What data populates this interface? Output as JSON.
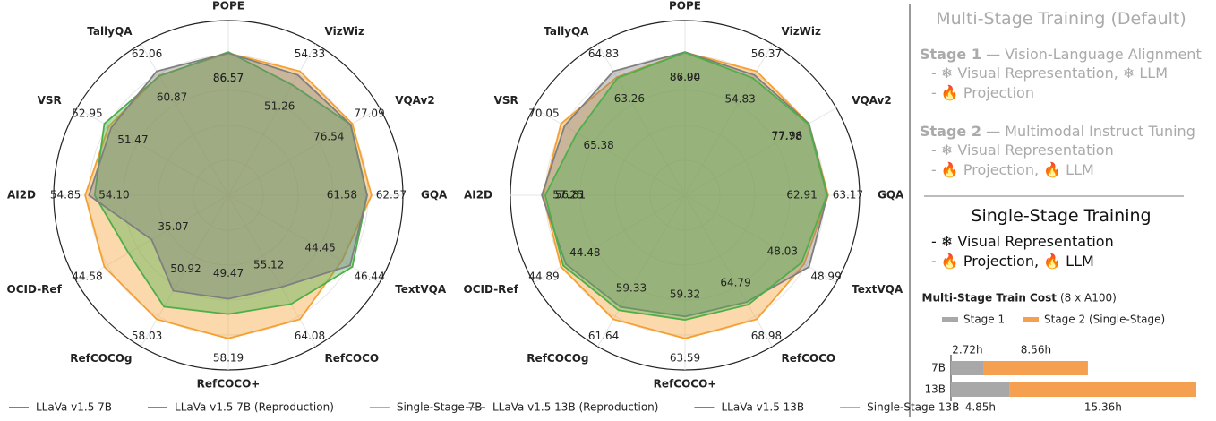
{
  "chart_data": [
    {
      "type": "radar",
      "categories": [
        "POPE",
        "VizWiz",
        "VQAv2",
        "GQA",
        "TextVQA",
        "RefCOCO",
        "RefCOCO+",
        "RefCOCOg",
        "OCID-Ref",
        "AI2D",
        "VSR",
        "TallyQA"
      ],
      "series": [
        {
          "name": "LLaVa v1.5 7B",
          "color": "#7f7f7f",
          "values": [
            86.57,
            53.5,
            76.54,
            61.58,
            46.0,
            55.12,
            49.47,
            50.92,
            35.07,
            54.1,
            51.47,
            62.06
          ],
          "value_labels": [
            "86.57",
            null,
            "76.54",
            "61.58",
            null,
            "55.12",
            "49.47",
            "50.92",
            "35.07",
            "54.10",
            "51.47",
            "62.06"
          ]
        },
        {
          "name": "LLaVa v1.5 7B (Reproduction)",
          "color": "#4daf4a",
          "values": [
            86.9,
            51.26,
            76.6,
            61.6,
            46.44,
            60.0,
            53.0,
            55.0,
            40.0,
            53.0,
            52.95,
            60.87
          ],
          "value_labels": [
            null,
            "51.26",
            null,
            null,
            "46.44",
            null,
            null,
            null,
            null,
            null,
            "52.95",
            "60.87"
          ]
        },
        {
          "name": "Single-Stage 7B",
          "color": "#f5a030",
          "values": [
            86.57,
            54.33,
            77.09,
            62.57,
            44.45,
            64.08,
            58.19,
            58.03,
            44.58,
            54.85,
            52.0,
            61.0
          ],
          "value_labels": [
            "86.57",
            "54.33",
            "77.09",
            "62.57",
            "44.45",
            "64.08",
            "58.19",
            "58.03",
            "44.58",
            "54.85",
            null,
            null
          ]
        }
      ]
    },
    {
      "type": "radar",
      "categories": [
        "POPE",
        "VizWiz",
        "VQAv2",
        "GQA",
        "TextVQA",
        "RefCOCO",
        "RefCOCO+",
        "RefCOCOg",
        "OCID-Ref",
        "AI2D",
        "VSR",
        "TallyQA"
      ],
      "series": [
        {
          "name": "LLaVa v1.5 13B (Reproduction)",
          "color": "#4daf4a",
          "values": [
            86.94,
            54.83,
            77.78,
            62.91,
            47.5,
            64.79,
            59.32,
            59.33,
            44.48,
            56.81,
            65.38,
            63.0
          ],
          "value_labels": [
            "86.94",
            "54.83",
            "77.78",
            "62.91",
            null,
            "64.79",
            "59.32",
            "59.33",
            "44.48",
            "56.81",
            "65.38",
            null
          ]
        },
        {
          "name": "LLaVa v1.5 13B",
          "color": "#7f7f7f",
          "values": [
            87.1,
            55.5,
            78.0,
            63.0,
            48.99,
            64.0,
            58.5,
            58.5,
            44.0,
            57.5,
            69.0,
            64.83
          ],
          "value_labels": [
            null,
            null,
            null,
            null,
            "48.99",
            null,
            null,
            null,
            null,
            null,
            null,
            "64.83"
          ]
        },
        {
          "name": "Single-Stage 13B",
          "color": "#f5a030",
          "values": [
            87,
            56.37,
            77.96,
            63.17,
            48.03,
            68.98,
            63.59,
            61.64,
            44.89,
            57.25,
            70.05,
            63.26
          ],
          "value_labels": [
            "87.00",
            "56.37",
            "77.96",
            "63.17",
            "48.03",
            "68.98",
            "63.59",
            "61.64",
            "44.89",
            "57.25",
            "70.05",
            "63.26"
          ]
        }
      ]
    },
    {
      "type": "stacked-bar-horizontal",
      "title": "Multi-Stage Train Cost",
      "subtitle": "(8 x A100)",
      "categories": [
        "7B",
        "13B"
      ],
      "series": [
        {
          "name": "Stage 1",
          "color": "#a8a8a8",
          "values": [
            2.72,
            4.85
          ],
          "value_labels": [
            "2.72h",
            "4.85h"
          ]
        },
        {
          "name": "Stage 2 (Single-Stage)",
          "color": "#f5a050",
          "values": [
            8.56,
            15.36
          ],
          "value_labels": [
            "8.56h",
            "15.36h"
          ]
        }
      ]
    }
  ],
  "panel": {
    "title": "Multi-Stage Training (Default)",
    "stages": [
      {
        "name": "Stage 1",
        "desc": "— Vision-Language Alignment",
        "items": [
          "- ❄ Visual Representation, ❄ LLM",
          "- 🔥 Projection"
        ]
      },
      {
        "name": "Stage 2",
        "desc": "— Multimodal Instruct Tuning",
        "items": [
          "- ❄ Visual Representation",
          "- 🔥 Projection, 🔥 LLM"
        ]
      }
    ],
    "single": {
      "title": "Single-Stage Training",
      "items": [
        "- ❄ Visual Representation",
        "- 🔥 Projection, 🔥 LLM"
      ]
    }
  }
}
